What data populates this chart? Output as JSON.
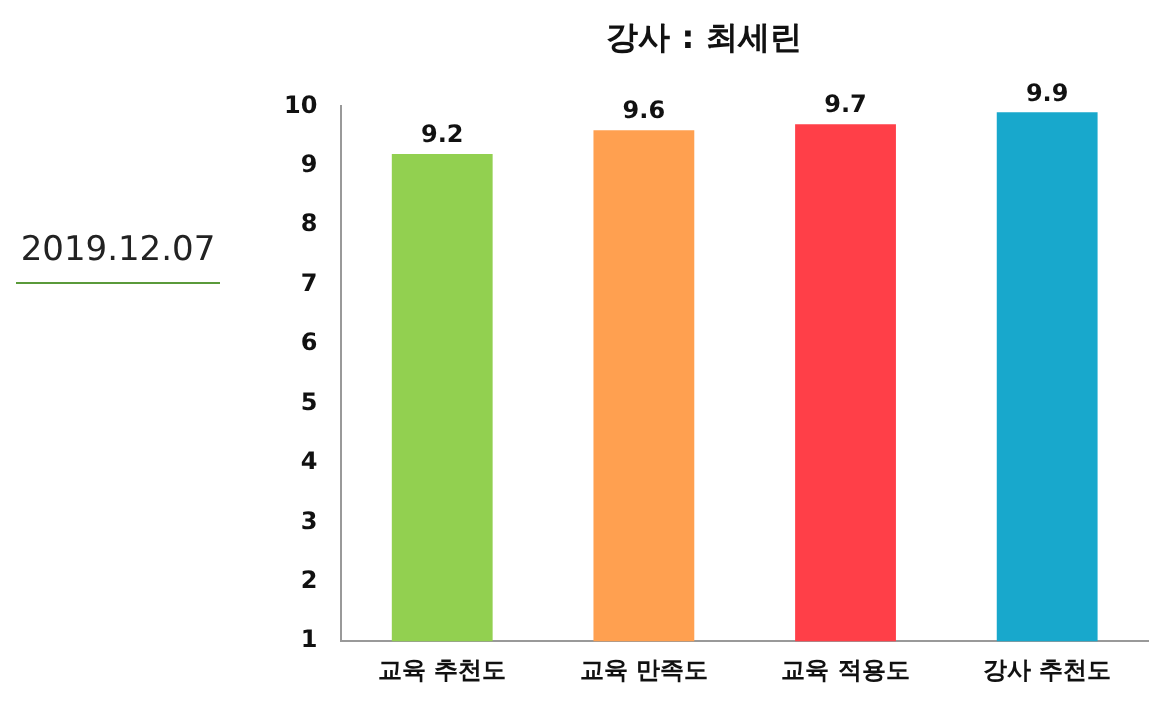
{
  "chart_data": {
    "type": "bar",
    "title": "강사 : 최세린",
    "annotations": [
      "2019.12.07"
    ],
    "categories": [
      "교육 추천도",
      "교육 만족도",
      "교육 적용도",
      "강사 추천도"
    ],
    "values": [
      9.2,
      9.6,
      9.7,
      9.9
    ],
    "colors": [
      "#92d050",
      "#ffa050",
      "#ff3f48",
      "#18a8cc"
    ],
    "ylim": [
      1,
      10
    ],
    "yticks": [
      1,
      2,
      3,
      4,
      5,
      6,
      7,
      8,
      9,
      10
    ],
    "grid": false,
    "legend": false,
    "data_labels": true
  }
}
